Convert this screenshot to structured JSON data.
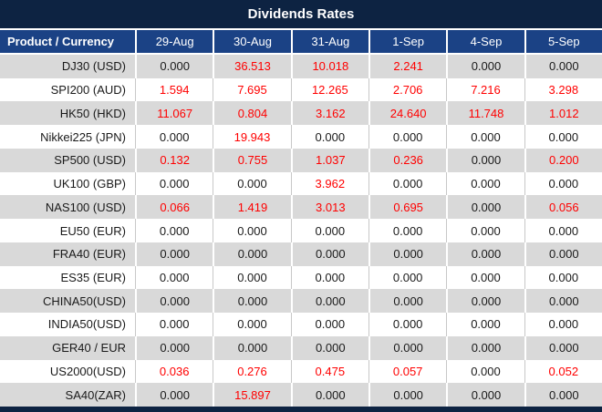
{
  "title": "Dividends Rates",
  "chart_data": {
    "type": "table",
    "title": "Dividends Rates",
    "columns": [
      "Product / Currency",
      "29-Aug",
      "30-Aug",
      "31-Aug",
      "1-Sep",
      "4-Sep",
      "5-Sep"
    ],
    "rows": [
      {
        "product": "DJ30 (USD)",
        "values": [
          "0.000",
          "36.513",
          "10.018",
          "2.241",
          "0.000",
          "0.000"
        ]
      },
      {
        "product": "SPI200 (AUD)",
        "values": [
          "1.594",
          "7.695",
          "12.265",
          "2.706",
          "7.216",
          "3.298"
        ]
      },
      {
        "product": "HK50 (HKD)",
        "values": [
          "11.067",
          "0.804",
          "3.162",
          "24.640",
          "11.748",
          "1.012"
        ]
      },
      {
        "product": "Nikkei225 (JPN)",
        "values": [
          "0.000",
          "19.943",
          "0.000",
          "0.000",
          "0.000",
          "0.000"
        ]
      },
      {
        "product": "SP500 (USD)",
        "values": [
          "0.132",
          "0.755",
          "1.037",
          "0.236",
          "0.000",
          "0.200"
        ]
      },
      {
        "product": "UK100 (GBP)",
        "values": [
          "0.000",
          "0.000",
          "3.962",
          "0.000",
          "0.000",
          "0.000"
        ]
      },
      {
        "product": "NAS100 (USD)",
        "values": [
          "0.066",
          "1.419",
          "3.013",
          "0.695",
          "0.000",
          "0.056"
        ]
      },
      {
        "product": "EU50 (EUR)",
        "values": [
          "0.000",
          "0.000",
          "0.000",
          "0.000",
          "0.000",
          "0.000"
        ]
      },
      {
        "product": "FRA40 (EUR)",
        "values": [
          "0.000",
          "0.000",
          "0.000",
          "0.000",
          "0.000",
          "0.000"
        ]
      },
      {
        "product": "ES35 (EUR)",
        "values": [
          "0.000",
          "0.000",
          "0.000",
          "0.000",
          "0.000",
          "0.000"
        ]
      },
      {
        "product": "CHINA50(USD)",
        "values": [
          "0.000",
          "0.000",
          "0.000",
          "0.000",
          "0.000",
          "0.000"
        ]
      },
      {
        "product": "INDIA50(USD)",
        "values": [
          "0.000",
          "0.000",
          "0.000",
          "0.000",
          "0.000",
          "0.000"
        ]
      },
      {
        "product": "GER40 / EUR",
        "values": [
          "0.000",
          "0.000",
          "0.000",
          "0.000",
          "0.000",
          "0.000"
        ]
      },
      {
        "product": "US2000(USD)",
        "values": [
          "0.036",
          "0.276",
          "0.475",
          "0.057",
          "0.000",
          "0.052"
        ]
      },
      {
        "product": "SA40(ZAR)",
        "values": [
          "0.000",
          "15.897",
          "0.000",
          "0.000",
          "0.000",
          "0.000"
        ]
      }
    ],
    "zero_value_string": "0.000",
    "legend_position": "none",
    "grid": "cell-borders"
  },
  "colors": {
    "title_bg": "#0d2342",
    "header_bg": "#1b4285",
    "row_alt_bg": "#d9d9d9",
    "row_bg": "#ffffff",
    "nonzero_value": "#ff0000",
    "zero_value": "#1a1a1a",
    "header_text": "#ffffff"
  }
}
